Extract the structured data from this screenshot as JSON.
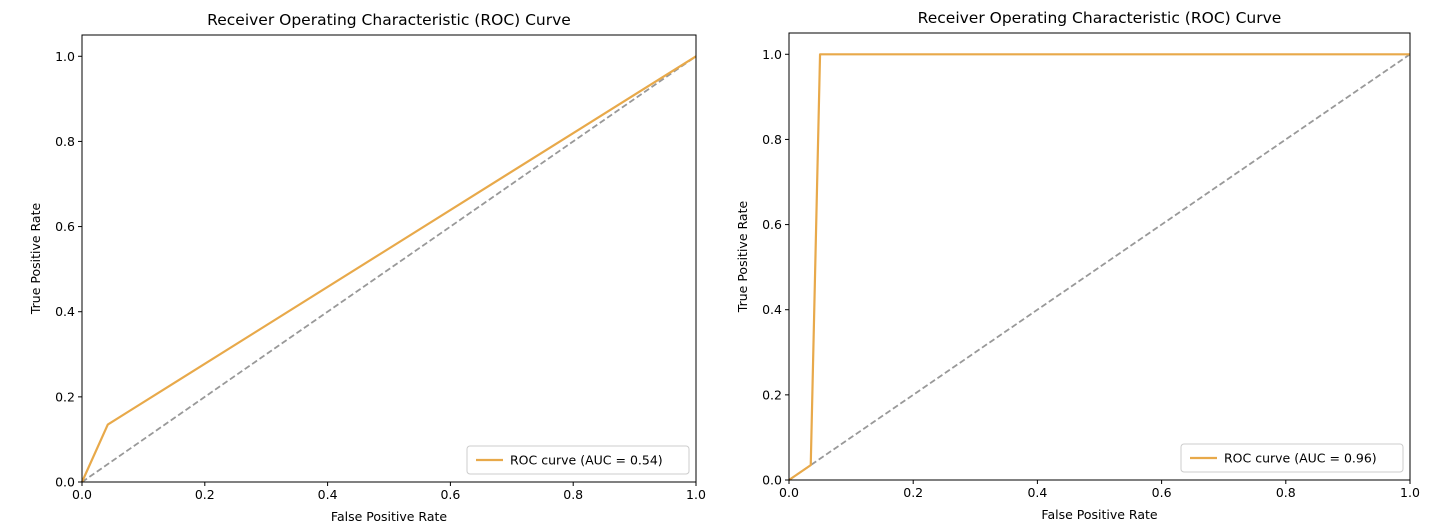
{
  "chart_data": [
    {
      "type": "line",
      "title": "Receiver Operating Characteristic (ROC) Curve",
      "xlabel": "False Positive Rate",
      "ylabel": "True Positive Rate",
      "xlim": [
        0,
        1.0
      ],
      "ylim": [
        0,
        1.05
      ],
      "xticks": [
        "0.0",
        "0.2",
        "0.4",
        "0.6",
        "0.8",
        "1.0"
      ],
      "yticks": [
        "0.0",
        "0.2",
        "0.4",
        "0.6",
        "0.8",
        "1.0"
      ],
      "grid": false,
      "legend_position": "lower right",
      "series": [
        {
          "name": "ROC curve (AUC = 0.54)",
          "color": "#e8a94a",
          "style": "solid",
          "x": [
            0.0,
            0.042,
            1.0
          ],
          "y": [
            0.0,
            0.135,
            1.0
          ]
        },
        {
          "color": "#999999",
          "style": "dashed",
          "x": [
            0.0,
            1.0
          ],
          "y": [
            0.0,
            1.0
          ]
        }
      ]
    },
    {
      "type": "line",
      "title": "Receiver Operating Characteristic (ROC) Curve",
      "xlabel": "False Positive Rate",
      "ylabel": "True Positive Rate",
      "xlim": [
        0,
        1.0
      ],
      "ylim": [
        0,
        1.05
      ],
      "xticks": [
        "0.0",
        "0.2",
        "0.4",
        "0.6",
        "0.8",
        "1.0"
      ],
      "yticks": [
        "0.0",
        "0.2",
        "0.4",
        "0.6",
        "0.8",
        "1.0"
      ],
      "grid": false,
      "legend_position": "lower right",
      "series": [
        {
          "name": "ROC curve (AUC = 0.96)",
          "color": "#e8a94a",
          "style": "solid",
          "x": [
            0.0,
            0.035,
            0.05,
            1.0
          ],
          "y": [
            0.0,
            0.035,
            1.0,
            1.0
          ]
        },
        {
          "color": "#999999",
          "style": "dashed",
          "x": [
            0.0,
            1.0
          ],
          "y": [
            0.0,
            1.0
          ]
        }
      ]
    }
  ]
}
